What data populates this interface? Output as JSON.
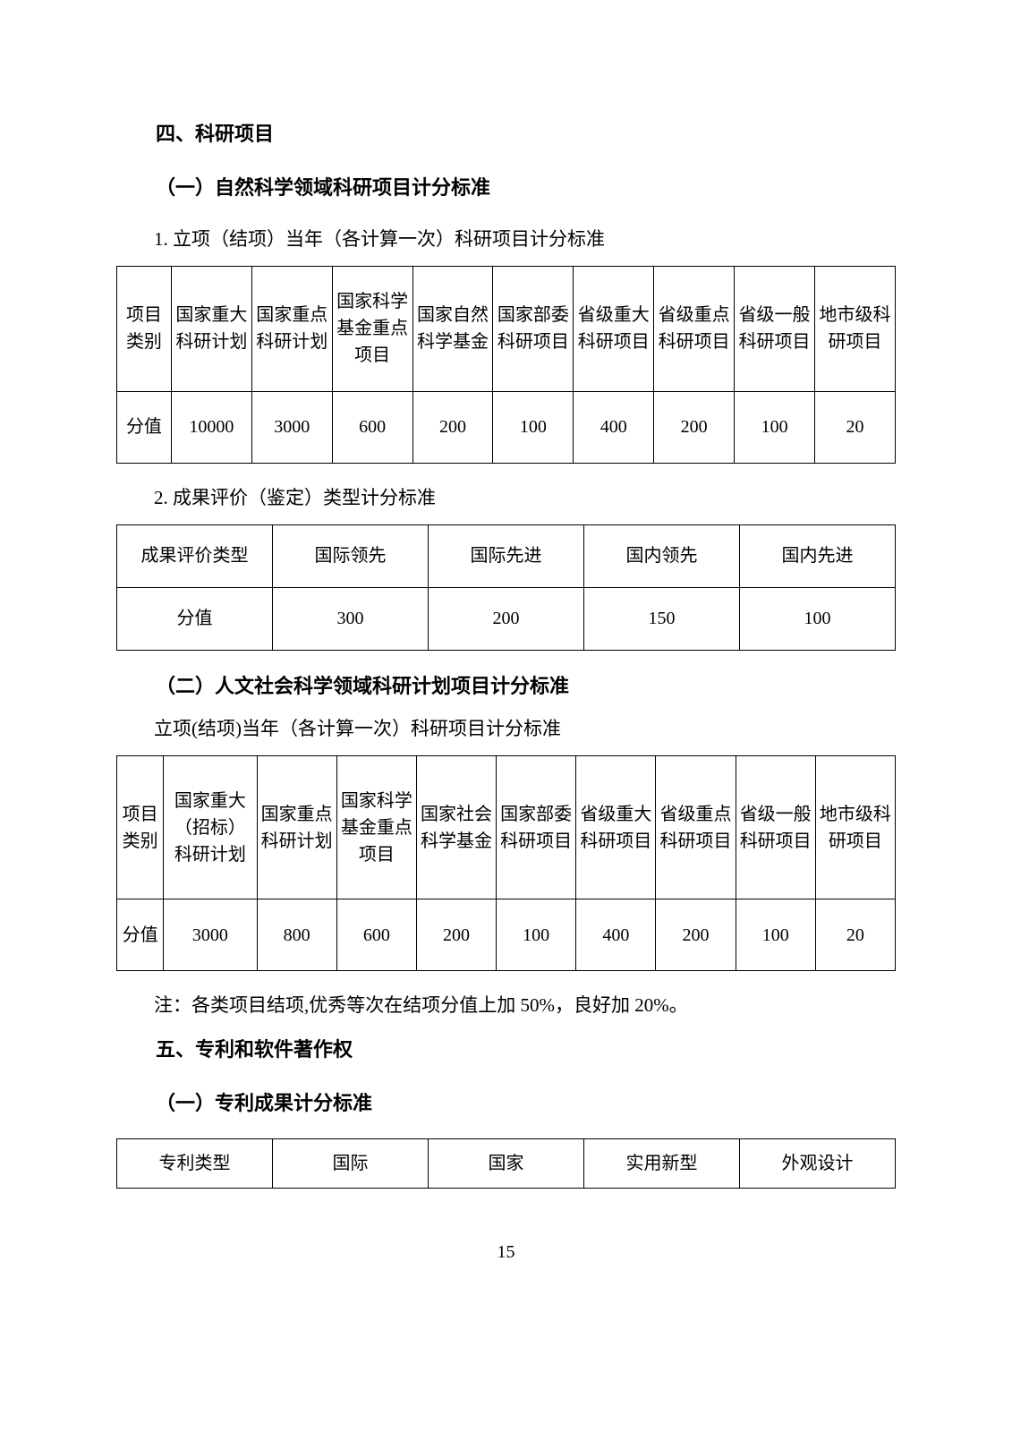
{
  "section4": {
    "heading": "四、科研项目",
    "sub1": {
      "heading": "（一）自然科学领域科研项目计分标准",
      "item1": "1.  立项（结项）当年（各计算一次）科研项目计分标准",
      "table1": {
        "columns": [
          "项目类别",
          "国家重大科研计划",
          "国家重点科研计划",
          "国家科学基金重点项目",
          "国家自然科学基金",
          "国家部委科研项目",
          "省级重大科研项目",
          "省级重点科研项目",
          "省级一般科研项目",
          "地市级科研项目"
        ],
        "row_label": "分值",
        "values": [
          "10000",
          "3000",
          "600",
          "200",
          "100",
          "400",
          "200",
          "100",
          "20"
        ]
      },
      "item2": "2.  成果评价（鉴定）类型计分标准",
      "table2": {
        "columns": [
          "成果评价类型",
          "国际领先",
          "国际先进",
          "国内领先",
          "国内先进"
        ],
        "row_label": "分值",
        "values": [
          "300",
          "200",
          "150",
          "100"
        ]
      }
    },
    "sub2": {
      "heading": "（二）人文社会科学领域科研计划项目计分标准",
      "item1": "立项(结项)当年（各计算一次）科研项目计分标准",
      "table3": {
        "columns": [
          "项目类别",
          "国家重大（招标）科研计划",
          "国家重点科研计划",
          "国家科学基金重点项目",
          "国家社会科学基金",
          "国家部委科研项目",
          "省级重大科研项目",
          "省级重点科研项目",
          "省级一般科研项目",
          "地市级科研项目"
        ],
        "row_label": "分值",
        "values": [
          "3000",
          "800",
          "600",
          "200",
          "100",
          "400",
          "200",
          "100",
          "20"
        ]
      },
      "note": "注：各类项目结项,优秀等次在结项分值上加 50%，良好加 20%。"
    }
  },
  "section5": {
    "heading": "五、专利和软件著作权",
    "sub1": {
      "heading": "（一）专利成果计分标准",
      "table4": {
        "columns": [
          "专利类型",
          "国际",
          "国家",
          "实用新型",
          "外观设计"
        ]
      }
    }
  },
  "page_number": "15"
}
